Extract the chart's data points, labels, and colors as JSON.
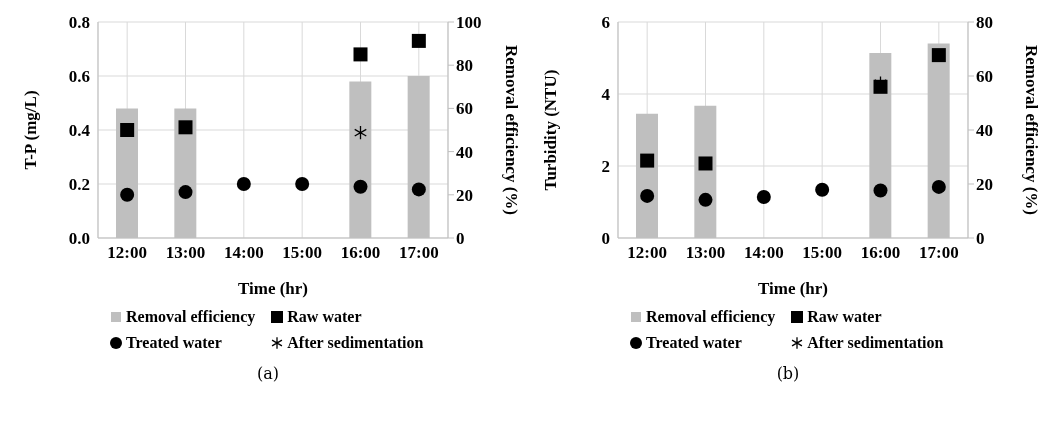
{
  "chart_data": [
    {
      "type": "bar",
      "categories": [
        "12:00",
        "13:00",
        "14:00",
        "15:00",
        "16:00",
        "17:00"
      ],
      "xlabel": "Time (hr)",
      "ylabel": "T-P (mg/L)",
      "y2label": "Removal efficiency (%)",
      "ylim": [
        0,
        0.8
      ],
      "yticks": [
        {
          "value": 0,
          "label": "0.0"
        },
        0.2,
        0.4,
        0.6,
        0.8
      ],
      "y2lim": [
        0,
        100
      ],
      "y2ticks": [
        0,
        20,
        40,
        60,
        80,
        100
      ],
      "grid": true,
      "legend": "bottom",
      "annotations": [
        "(a)"
      ],
      "series": [
        {
          "name": "Removal efficiency",
          "axis": "y2",
          "color": "#bfbfbf",
          "values": [
            60,
            60,
            null,
            null,
            72.5,
            75
          ]
        },
        {
          "name": "Raw water",
          "type": "scatter",
          "marker": "square",
          "color": "#000000",
          "values": [
            0.4,
            0.41,
            null,
            null,
            0.68,
            0.73
          ]
        },
        {
          "name": "Treated water",
          "type": "scatter",
          "marker": "circle",
          "color": "#000000",
          "values": [
            0.16,
            0.17,
            0.2,
            0.2,
            0.19,
            0.18
          ]
        },
        {
          "name": "After sedimentation",
          "type": "scatter",
          "marker": "cross",
          "color": "#000000",
          "values": [
            null,
            null,
            null,
            null,
            0.39,
            null
          ]
        }
      ]
    },
    {
      "type": "bar",
      "categories": [
        "12:00",
        "13:00",
        "14:00",
        "15:00",
        "16:00",
        "17:00"
      ],
      "xlabel": "Time (hr)",
      "ylabel": "Turbidity (NTU)",
      "y2label": "Removal efficiency (%)",
      "ylim": [
        0,
        6
      ],
      "yticks": [
        0,
        2,
        4,
        6
      ],
      "y2lim": [
        0,
        80
      ],
      "y2ticks": [
        0,
        20,
        40,
        60,
        80
      ],
      "grid": true,
      "legend": "bottom",
      "annotations": [
        "(b)"
      ],
      "series": [
        {
          "name": "Removal efficiency",
          "axis": "y2",
          "color": "#bfbfbf",
          "values": [
            46,
            49,
            null,
            null,
            68.5,
            72
          ]
        },
        {
          "name": "Raw water",
          "type": "scatter",
          "marker": "square",
          "color": "#000000",
          "values": [
            2.15,
            2.07,
            null,
            null,
            4.2,
            5.08
          ]
        },
        {
          "name": "Treated water",
          "type": "scatter",
          "marker": "circle",
          "color": "#000000",
          "values": [
            1.17,
            1.06,
            1.14,
            1.34,
            1.32,
            1.42
          ]
        },
        {
          "name": "After sedimentation",
          "type": "scatter",
          "marker": "cross",
          "color": "#000000",
          "values": [
            null,
            null,
            null,
            null,
            4.3,
            null
          ]
        }
      ]
    }
  ]
}
